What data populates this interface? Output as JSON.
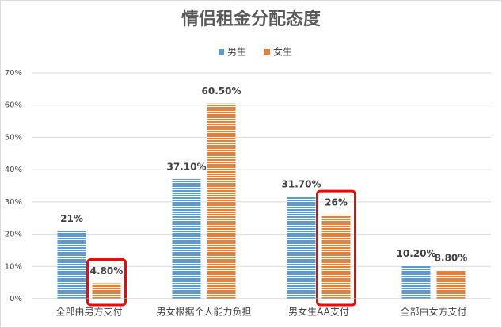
{
  "chart_data": {
    "type": "bar",
    "title": "情侣租金分配态度",
    "categories": [
      "全部由男方支付",
      "男女根据个人能力负担",
      "男女生AA支付",
      "全部由女方支付"
    ],
    "series": [
      {
        "name": "男生",
        "color": "#5b9bd5",
        "values": [
          21,
          37.1,
          31.7,
          10.2
        ],
        "value_labels": [
          "21%",
          "37.10%",
          "31.70%",
          "10.20%"
        ]
      },
      {
        "name": "女生",
        "color": "#ed7d31",
        "values": [
          4.8,
          60.5,
          26,
          8.8
        ],
        "value_labels": [
          "4.80%",
          "60.50%",
          "26%",
          "8.80%"
        ]
      }
    ],
    "ylim": [
      0,
      70
    ],
    "yticks": [
      {
        "value": 0,
        "label": "0%"
      },
      {
        "value": 10,
        "label": "10%"
      },
      {
        "value": 20,
        "label": "20%"
      },
      {
        "value": 30,
        "label": "30%"
      },
      {
        "value": 40,
        "label": "40%"
      },
      {
        "value": 50,
        "label": "50%"
      },
      {
        "value": 60,
        "label": "60%"
      },
      {
        "value": 70,
        "label": "70%"
      }
    ],
    "grid": true,
    "legend": "top"
  }
}
